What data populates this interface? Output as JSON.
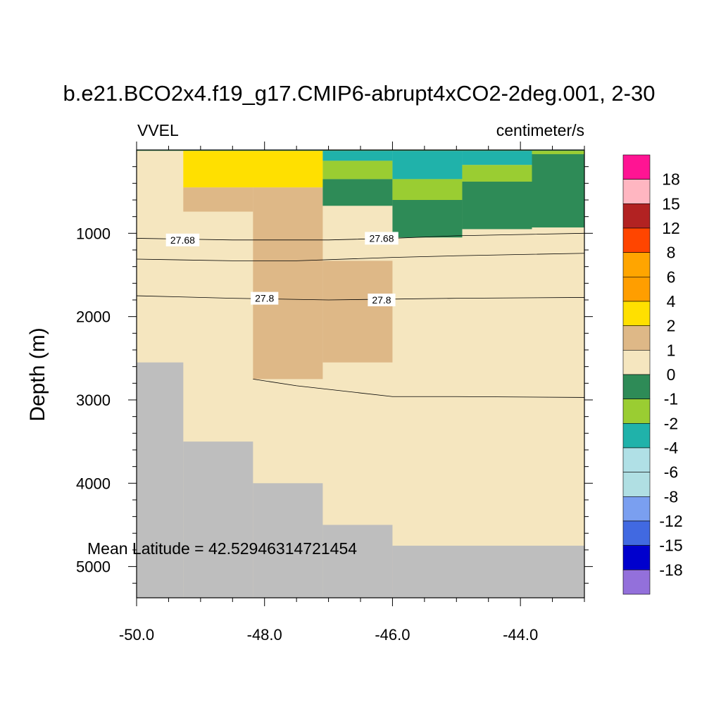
{
  "chart_data": {
    "type": "heatmap",
    "title": "b.e21.BCO2x4.f19_g17.CMIP6-abrupt4xCO2-2deg.001, 2-30",
    "left_string": "VVEL",
    "right_string": "centimeter/s",
    "xlabel": "",
    "ylabel": "Depth (m)",
    "annotation": "Mean Latitude = 42.52946314721454",
    "xlim": [
      -50.0,
      -43.0
    ],
    "ylim": [
      5375,
      0
    ],
    "x_ticks": [
      -50.0,
      -48.0,
      -46.0,
      -44.0
    ],
    "x_tick_labels": [
      "-50.0",
      "-48.0",
      "-46.0",
      "-44.0"
    ],
    "y_ticks": [
      1000,
      2000,
      3000,
      4000,
      5000
    ],
    "y_tick_labels": [
      "1000",
      "2000",
      "3000",
      "4000",
      "5000"
    ],
    "colorbar": {
      "labels": [
        "18",
        "15",
        "12",
        "8",
        "6",
        "4",
        "2",
        "1",
        "0",
        "-1",
        "-2",
        "-4",
        "-6",
        "-8",
        "-12",
        "-15",
        "-18"
      ],
      "colors": [
        "#ff1493",
        "#ffb6c1",
        "#b22222",
        "#ff4500",
        "#ffa500",
        "#ff9e00",
        "#ffe000",
        "#deb887",
        "#f5e6bf",
        "#2e8b57",
        "#9acd32",
        "#20b2aa",
        "#b0e0e6",
        "#b0dfe3",
        "#7a9ff0",
        "#4169e1",
        "#0000cd",
        "#9370db"
      ]
    },
    "colors": {
      "land": "#bebebe",
      "c_2_4": "#ffe000",
      "c_1_2": "#deb887",
      "c_0_1": "#f5e6bf",
      "c_m1_0": "#2e8b57",
      "c_m2_m1": "#9acd32",
      "c_m4_m2": "#20b2aa"
    },
    "cells": [
      {
        "x": [
          -50.0,
          -43.0
        ],
        "y": [
          0,
          5375
        ],
        "cls": "c_0_1"
      },
      {
        "x": [
          -49.27,
          -47.09
        ],
        "y": [
          10,
          450
        ],
        "cls": "c_2_4"
      },
      {
        "x": [
          -49.27,
          -48.18
        ],
        "y": [
          450,
          740
        ],
        "cls": "c_1_2"
      },
      {
        "x": [
          -48.18,
          -47.09
        ],
        "y": [
          450,
          2750
        ],
        "cls": "c_1_2"
      },
      {
        "x": [
          -47.09,
          -46.0
        ],
        "y": [
          1330,
          2550
        ],
        "cls": "c_1_2"
      },
      {
        "x": [
          -47.09,
          -46.0
        ],
        "y": [
          10,
          130
        ],
        "cls": "c_m4_m2"
      },
      {
        "x": [
          -47.09,
          -46.0
        ],
        "y": [
          130,
          350
        ],
        "cls": "c_m2_m1"
      },
      {
        "x": [
          -47.09,
          -46.0
        ],
        "y": [
          350,
          670
        ],
        "cls": "c_m1_0"
      },
      {
        "x": [
          -46.0,
          -44.91
        ],
        "y": [
          10,
          350
        ],
        "cls": "c_m4_m2"
      },
      {
        "x": [
          -46.0,
          -44.91
        ],
        "y": [
          350,
          600
        ],
        "cls": "c_m2_m1"
      },
      {
        "x": [
          -46.0,
          -44.91
        ],
        "y": [
          600,
          1050
        ],
        "cls": "c_m1_0"
      },
      {
        "x": [
          -44.91,
          -43.82
        ],
        "y": [
          10,
          180
        ],
        "cls": "c_m4_m2"
      },
      {
        "x": [
          -44.91,
          -43.82
        ],
        "y": [
          180,
          380
        ],
        "cls": "c_m2_m1"
      },
      {
        "x": [
          -44.91,
          -43.82
        ],
        "y": [
          380,
          950
        ],
        "cls": "c_m1_0"
      },
      {
        "x": [
          -43.82,
          -43.0
        ],
        "y": [
          10,
          50
        ],
        "cls": "c_m2_m1"
      },
      {
        "x": [
          -43.82,
          -43.0
        ],
        "y": [
          50,
          930
        ],
        "cls": "c_m1_0"
      },
      {
        "x": [
          -50.0,
          -43.0
        ],
        "y": [
          0,
          10
        ],
        "cls": "c_m1_0"
      }
    ],
    "land": [
      {
        "x": [
          -50.0,
          -49.27
        ],
        "y": [
          2550,
          5375
        ]
      },
      {
        "x": [
          -49.27,
          -48.18
        ],
        "y": [
          3500,
          5375
        ]
      },
      {
        "x": [
          -48.18,
          -47.09
        ],
        "y": [
          4000,
          5375
        ]
      },
      {
        "x": [
          -47.09,
          -46.0
        ],
        "y": [
          4500,
          5375
        ]
      },
      {
        "x": [
          -46.0,
          -43.0
        ],
        "y": [
          4750,
          5375
        ]
      }
    ],
    "contours": [
      {
        "level": "27.68",
        "points": [
          [
            -50.0,
            1060
          ],
          [
            -48.5,
            1080
          ],
          [
            -47.0,
            1080
          ],
          [
            -46.0,
            1060
          ],
          [
            -45.0,
            1030
          ],
          [
            -43.0,
            1000
          ]
        ],
        "labels": [
          {
            "text": "27.68",
            "x": -49.28,
            "y": 1080
          },
          {
            "text": "27.68",
            "x": -46.17,
            "y": 1060
          }
        ]
      },
      {
        "level": "",
        "points": [
          [
            -50.0,
            1310
          ],
          [
            -48.5,
            1330
          ],
          [
            -47.5,
            1330
          ],
          [
            -46.0,
            1290
          ],
          [
            -45.0,
            1270
          ],
          [
            -43.0,
            1240
          ]
        ],
        "labels": []
      },
      {
        "level": "27.8",
        "points": [
          [
            -50.0,
            1750
          ],
          [
            -48.5,
            1780
          ],
          [
            -47.0,
            1800
          ],
          [
            -46.0,
            1790
          ],
          [
            -45.0,
            1780
          ],
          [
            -43.0,
            1770
          ]
        ],
        "labels": [
          {
            "text": "27.8",
            "x": -48.0,
            "y": 1780
          },
          {
            "text": "27.8",
            "x": -46.17,
            "y": 1800
          }
        ]
      },
      {
        "level": "",
        "points": [
          [
            -48.18,
            2750
          ],
          [
            -47.5,
            2830
          ],
          [
            -46.0,
            2960
          ],
          [
            -45.0,
            2960
          ],
          [
            -43.0,
            2970
          ]
        ],
        "labels": []
      }
    ]
  }
}
